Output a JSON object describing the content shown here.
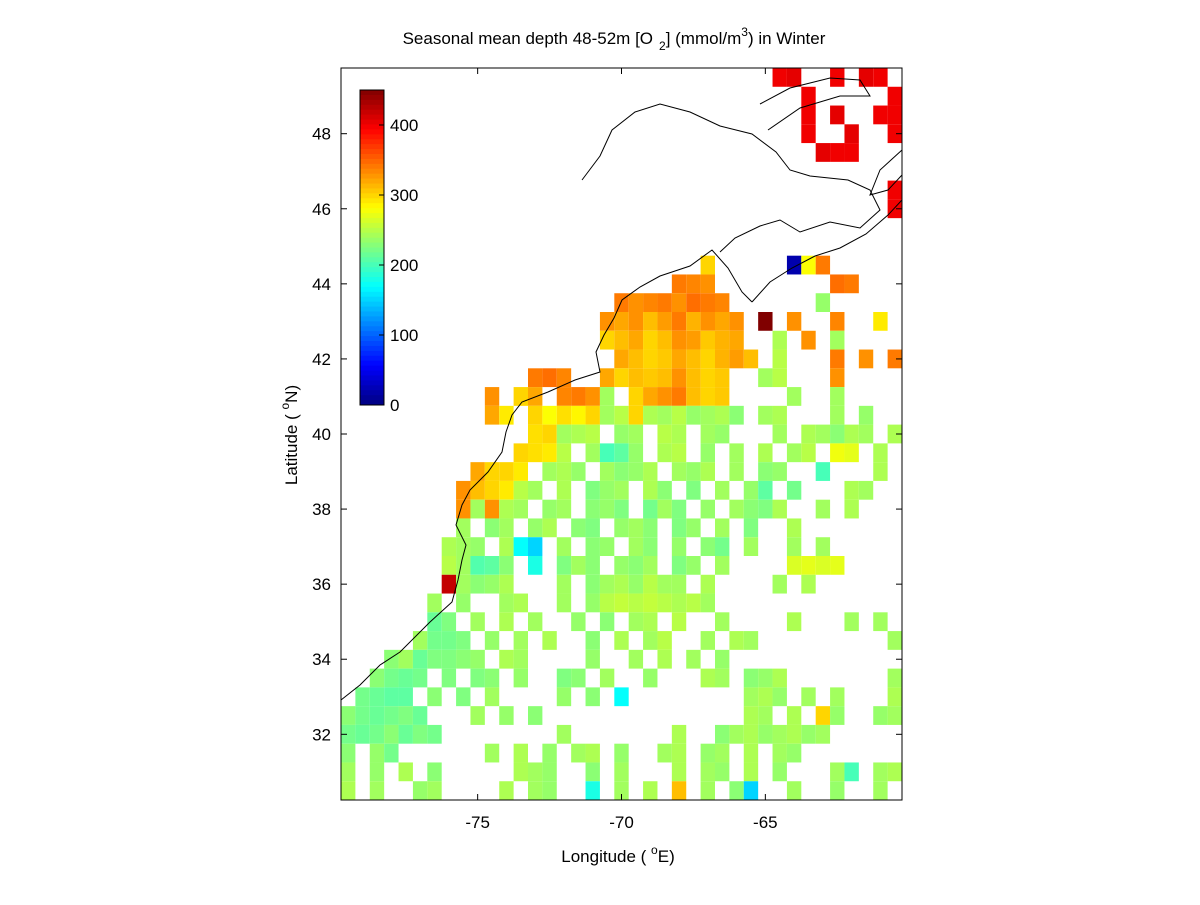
{
  "chart_data": {
    "type": "heatmap",
    "title_parts": [
      "Seasonal mean depth 48-52m [O",
      "2",
      "] (mmol/m",
      "3",
      ") in  Winter"
    ],
    "x_label_parts": [
      "Longitude ( ",
      "o",
      "E)"
    ],
    "y_label_parts": [
      "Latitude ( ",
      "o",
      "N)"
    ],
    "xlim": [
      -79.75,
      -60.25
    ],
    "ylim": [
      30.25,
      49.75
    ],
    "xticks": [
      -75,
      -70,
      -65
    ],
    "yticks": [
      32,
      34,
      36,
      38,
      40,
      42,
      44,
      46,
      48
    ],
    "clim": [
      0,
      450
    ],
    "cticks": [
      0,
      100,
      200,
      300,
      400
    ],
    "colormap": "jet",
    "cell_size": 0.5,
    "rows": [
      {
        "lat": 49.5,
        "lon": [
          -64.5,
          -64.0,
          -62.5,
          -61.5,
          -61.0
        ],
        "values": [
          400,
          405,
          400,
          405,
          400
        ]
      },
      {
        "lat": 49.0,
        "lon": [
          -63.5,
          -60.5
        ],
        "values": [
          400,
          400
        ]
      },
      {
        "lat": 48.5,
        "lon": [
          -63.5,
          -62.5,
          -61.0,
          -60.5
        ],
        "values": [
          400,
          405,
          400,
          400
        ]
      },
      {
        "lat": 48.0,
        "lon": [
          -63.5,
          -62.0,
          -60.5
        ],
        "values": [
          400,
          405,
          400
        ]
      },
      {
        "lat": 47.5,
        "lon": [
          -63.0,
          -62.5,
          -62.0
        ],
        "values": [
          405,
          400,
          400
        ]
      },
      {
        "lat": 46.5,
        "lon": [
          -60.5
        ],
        "values": [
          400
        ]
      },
      {
        "lat": 46.0,
        "lon": [
          -60.5
        ],
        "values": [
          400
        ]
      },
      {
        "lat": 44.5,
        "lon": [
          -67.0,
          -64.0,
          -63.5,
          -63.0
        ],
        "values": [
          300,
          20,
          280,
          340
        ]
      },
      {
        "lat": 44.0,
        "lon": [
          -68.0,
          -67.5,
          -67.0,
          -62.5,
          -62.0
        ],
        "values": [
          340,
          335,
          330,
          345,
          340
        ]
      },
      {
        "lat": 43.5,
        "lon": [
          -70.0,
          -69.5,
          -69.0,
          -68.5,
          -68.0,
          -67.5,
          -67.0,
          -66.5,
          -63.0
        ],
        "values": [
          340,
          330,
          335,
          340,
          330,
          345,
          340,
          335,
          235
        ]
      },
      {
        "lat": 43.0,
        "lon": [
          -70.5,
          -70.0,
          -69.5,
          -69.0,
          -68.5,
          -68.0,
          -67.5,
          -67.0,
          -66.5,
          -66.0,
          -65.0,
          -64.0,
          -62.5,
          -61.0
        ],
        "values": [
          330,
          320,
          330,
          310,
          325,
          340,
          315,
          330,
          320,
          330,
          450,
          330,
          335,
          290
        ]
      },
      {
        "lat": 42.5,
        "lon": [
          -70.5,
          -70.0,
          -69.5,
          -69.0,
          -68.5,
          -68.0,
          -67.5,
          -67.0,
          -66.5,
          -66.0,
          -64.5,
          -63.5,
          -62.5
        ],
        "values": [
          300,
          310,
          320,
          300,
          310,
          330,
          325,
          305,
          315,
          320,
          245,
          330,
          240
        ]
      },
      {
        "lat": 42.0,
        "lon": [
          -70.0,
          -69.5,
          -69.0,
          -68.5,
          -68.0,
          -67.5,
          -67.0,
          -66.5,
          -66.0,
          -65.5,
          -64.5,
          -62.5,
          -61.5,
          -60.5
        ],
        "values": [
          320,
          310,
          300,
          305,
          320,
          310,
          300,
          315,
          325,
          310,
          250,
          340,
          330,
          340
        ]
      },
      {
        "lat": 41.5,
        "lon": [
          -73.0,
          -72.5,
          -72.0,
          -70.5,
          -70.0,
          -69.5,
          -69.0,
          -68.5,
          -68.0,
          -67.5,
          -67.0,
          -66.5,
          -65.0,
          -64.5,
          -62.5
        ],
        "values": [
          340,
          345,
          335,
          320,
          300,
          310,
          305,
          310,
          330,
          310,
          300,
          305,
          240,
          250,
          330
        ]
      },
      {
        "lat": 41.0,
        "lon": [
          -74.5,
          -73.5,
          -73.0,
          -72.0,
          -71.5,
          -71.0,
          -70.5,
          -69.5,
          -69.0,
          -68.5,
          -68.0,
          -67.5,
          -67.0,
          -66.5,
          -64.0,
          -62.5
        ],
        "values": [
          330,
          300,
          320,
          335,
          340,
          330,
          240,
          300,
          320,
          330,
          340,
          310,
          300,
          305,
          240,
          240
        ]
      },
      {
        "lat": 40.5,
        "lon": [
          -74.5,
          -74.0,
          -73.0,
          -72.5,
          -72.0,
          -71.5,
          -71.0,
          -70.5,
          -70.0,
          -69.5,
          -69.0,
          -68.5,
          -68.0,
          -67.5,
          -67.0,
          -66.5,
          -66.0,
          -65.0,
          -64.5,
          -62.5,
          -61.5
        ],
        "values": [
          320,
          290,
          300,
          280,
          295,
          285,
          300,
          240,
          250,
          300,
          245,
          240,
          250,
          235,
          240,
          245,
          230,
          240,
          245,
          240,
          235
        ]
      },
      {
        "lat": 40.0,
        "lon": [
          -73.0,
          -72.5,
          -72.0,
          -71.5,
          -71.0,
          -70.0,
          -69.5,
          -68.5,
          -68.0,
          -67.0,
          -66.5,
          -64.5,
          -63.5,
          -63.0,
          -62.5,
          -62.0,
          -61.5,
          -60.5
        ],
        "values": [
          295,
          300,
          240,
          245,
          250,
          235,
          240,
          250,
          245,
          240,
          235,
          240,
          245,
          240,
          230,
          245,
          240,
          245
        ]
      },
      {
        "lat": 39.5,
        "lon": [
          -73.5,
          -73.0,
          -72.5,
          -72.0,
          -71.0,
          -70.5,
          -70.0,
          -69.5,
          -68.5,
          -68.0,
          -67.0,
          -66.0,
          -65.0,
          -64.0,
          -63.5,
          -62.5,
          -62.0,
          -61.0
        ],
        "values": [
          300,
          295,
          290,
          250,
          240,
          200,
          210,
          235,
          245,
          250,
          235,
          240,
          245,
          240,
          250,
          275,
          270,
          245
        ]
      },
      {
        "lat": 39.0,
        "lon": [
          -75.0,
          -74.5,
          -74.0,
          -73.5,
          -72.5,
          -72.0,
          -71.5,
          -70.5,
          -70.0,
          -69.5,
          -69.0,
          -68.0,
          -67.5,
          -67.0,
          -66.0,
          -65.0,
          -64.5,
          -63.0,
          -61.0
        ],
        "values": [
          320,
          300,
          300,
          290,
          240,
          245,
          235,
          240,
          230,
          235,
          245,
          240,
          235,
          245,
          240,
          230,
          235,
          200,
          245
        ]
      },
      {
        "lat": 38.5,
        "lon": [
          -75.5,
          -75.0,
          -74.5,
          -74.0,
          -73.5,
          -73.0,
          -72.0,
          -71.0,
          -70.5,
          -70.0,
          -69.0,
          -68.5,
          -67.5,
          -66.5,
          -65.5,
          -65.0,
          -64.0,
          -62.0,
          -61.5
        ],
        "values": [
          330,
          310,
          300,
          290,
          250,
          240,
          245,
          225,
          235,
          240,
          245,
          230,
          225,
          240,
          235,
          210,
          220,
          245,
          240
        ]
      },
      {
        "lat": 38.0,
        "lon": [
          -75.5,
          -75.0,
          -74.5,
          -74.0,
          -73.5,
          -72.5,
          -72.0,
          -71.0,
          -70.5,
          -70.0,
          -69.0,
          -68.5,
          -68.0,
          -67.0,
          -66.0,
          -65.5,
          -65.0,
          -64.5,
          -63.0,
          -62.0
        ],
        "values": [
          330,
          240,
          330,
          245,
          240,
          235,
          240,
          230,
          235,
          225,
          220,
          240,
          225,
          235,
          240,
          230,
          225,
          245,
          240,
          245
        ]
      },
      {
        "lat": 37.5,
        "lon": [
          -75.5,
          -74.5,
          -74.0,
          -73.0,
          -72.5,
          -71.5,
          -71.0,
          -70.0,
          -69.5,
          -69.0,
          -68.0,
          -67.5,
          -66.5,
          -65.5,
          -64.0
        ],
        "values": [
          240,
          230,
          240,
          235,
          245,
          230,
          225,
          235,
          240,
          230,
          225,
          235,
          240,
          225,
          245
        ]
      },
      {
        "lat": 37.0,
        "lon": [
          -76.0,
          -75.5,
          -75.0,
          -74.0,
          -73.5,
          -73.0,
          -72.0,
          -71.0,
          -70.5,
          -69.5,
          -69.0,
          -68.0,
          -67.0,
          -66.5,
          -65.5,
          -64.0,
          -63.0
        ],
        "values": [
          245,
          240,
          235,
          245,
          170,
          150,
          240,
          230,
          235,
          240,
          230,
          235,
          230,
          220,
          240,
          240,
          240
        ]
      },
      {
        "lat": 36.5,
        "lon": [
          -76.0,
          -75.5,
          -75.0,
          -74.5,
          -74.0,
          -73.0,
          -72.0,
          -71.5,
          -71.0,
          -70.0,
          -69.5,
          -69.0,
          -68.0,
          -67.5,
          -66.5,
          -64.0,
          -63.5,
          -63.0,
          -62.5
        ],
        "values": [
          250,
          240,
          205,
          210,
          230,
          180,
          225,
          240,
          230,
          235,
          230,
          240,
          225,
          235,
          240,
          265,
          270,
          265,
          270
        ]
      },
      {
        "lat": 36.0,
        "lon": [
          -76.0,
          -75.5,
          -75.0,
          -74.5,
          -74.0,
          -72.0,
          -71.0,
          -70.5,
          -70.0,
          -69.5,
          -69.0,
          -68.5,
          -68.0,
          -67.0,
          -64.5,
          -63.5
        ],
        "values": [
          420,
          240,
          230,
          235,
          245,
          240,
          230,
          240,
          245,
          235,
          250,
          240,
          240,
          245,
          240,
          245
        ]
      },
      {
        "lat": 35.5,
        "lon": [
          -76.5,
          -75.5,
          -74.0,
          -73.5,
          -72.0,
          -71.0,
          -70.5,
          -70.0,
          -69.5,
          -69.0,
          -68.5,
          -68.0,
          -67.5,
          -67.0
        ],
        "values": [
          240,
          235,
          240,
          245,
          240,
          235,
          250,
          255,
          250,
          255,
          250,
          245,
          250,
          240
        ]
      },
      {
        "lat": 35.0,
        "lon": [
          -76.5,
          -76.0,
          -75.0,
          -74.0,
          -73.0,
          -71.5,
          -70.5,
          -69.5,
          -69.0,
          -68.0,
          -66.5,
          -64.0,
          -62.0,
          -61.0
        ],
        "values": [
          215,
          225,
          240,
          245,
          240,
          235,
          230,
          240,
          245,
          250,
          240,
          245,
          240,
          240
        ]
      },
      {
        "lat": 34.5,
        "lon": [
          -77.0,
          -76.5,
          -76.0,
          -75.5,
          -74.5,
          -73.5,
          -72.5,
          -71.0,
          -70.0,
          -69.0,
          -68.5,
          -67.0,
          -66.0,
          -65.5,
          -60.5
        ],
        "values": [
          240,
          220,
          220,
          225,
          235,
          240,
          245,
          230,
          245,
          240,
          250,
          240,
          245,
          240,
          240
        ]
      },
      {
        "lat": 34.0,
        "lon": [
          -78.0,
          -77.5,
          -77.0,
          -76.5,
          -76.0,
          -75.5,
          -75.0,
          -74.0,
          -73.5,
          -71.0,
          -69.5,
          -68.5,
          -67.5,
          -66.5
        ],
        "values": [
          230,
          240,
          215,
          225,
          225,
          230,
          235,
          245,
          240,
          235,
          240,
          245,
          240,
          235
        ]
      },
      {
        "lat": 33.5,
        "lon": [
          -78.5,
          -78.0,
          -77.5,
          -77.0,
          -76.0,
          -75.0,
          -74.5,
          -73.5,
          -72.0,
          -71.5,
          -70.5,
          -69.0,
          -67.0,
          -66.5,
          -65.5,
          -65.0,
          -64.5,
          -60.5
        ],
        "values": [
          230,
          220,
          215,
          220,
          225,
          225,
          230,
          235,
          225,
          230,
          240,
          235,
          245,
          240,
          230,
          235,
          245,
          240
        ]
      },
      {
        "lat": 33.0,
        "lon": [
          -79.0,
          -78.5,
          -78.0,
          -77.5,
          -76.5,
          -75.5,
          -74.5,
          -72.0,
          -71.0,
          -70.0,
          -65.5,
          -65.0,
          -64.5,
          -63.5,
          -62.5,
          -60.5
        ],
        "values": [
          220,
          215,
          210,
          210,
          230,
          225,
          240,
          235,
          230,
          170,
          240,
          245,
          235,
          240,
          240,
          245
        ]
      },
      {
        "lat": 32.5,
        "lon": [
          -79.5,
          -79.0,
          -78.5,
          -78.0,
          -77.5,
          -77.0,
          -75.0,
          -74.0,
          -73.0,
          -65.5,
          -65.0,
          -64.0,
          -63.0,
          -62.5,
          -61.0,
          -60.5
        ],
        "values": [
          230,
          220,
          215,
          220,
          225,
          215,
          240,
          235,
          230,
          245,
          240,
          245,
          300,
          235,
          235,
          240
        ]
      },
      {
        "lat": 32.0,
        "lon": [
          -79.5,
          -79.0,
          -78.5,
          -78.0,
          -77.5,
          -77.0,
          -76.5,
          -72.0,
          -68.0,
          -66.5,
          -66.0,
          -65.5,
          -65.0,
          -64.5,
          -64.0,
          -63.5,
          -63.0
        ],
        "values": [
          220,
          215,
          220,
          230,
          215,
          225,
          220,
          240,
          245,
          230,
          240,
          245,
          235,
          240,
          245,
          235,
          240
        ]
      },
      {
        "lat": 31.5,
        "lon": [
          -79.5,
          -78.5,
          -78.0,
          -74.5,
          -73.5,
          -72.5,
          -71.5,
          -71.0,
          -70.0,
          -68.5,
          -68.0,
          -67.0,
          -66.5,
          -65.5,
          -64.5,
          -64.0
        ],
        "values": [
          230,
          235,
          220,
          240,
          245,
          235,
          240,
          245,
          235,
          240,
          245,
          235,
          240,
          245,
          240,
          235
        ]
      },
      {
        "lat": 31.0,
        "lon": [
          -79.5,
          -78.5,
          -77.5,
          -76.5,
          -73.5,
          -73.0,
          -72.5,
          -71.0,
          -70.0,
          -68.0,
          -67.0,
          -66.5,
          -65.5,
          -64.5,
          -62.5,
          -62.0,
          -61.0,
          -60.5
        ],
        "values": [
          240,
          235,
          245,
          230,
          245,
          240,
          235,
          230,
          240,
          245,
          240,
          235,
          245,
          235,
          240,
          200,
          240,
          245
        ]
      },
      {
        "lat": 30.5,
        "lon": [
          -79.5,
          -78.5,
          -77.0,
          -76.5,
          -74.0,
          -73.0,
          -72.5,
          -71.0,
          -70.0,
          -69.0,
          -68.0,
          -67.0,
          -66.0,
          -65.5,
          -64.0,
          -62.5,
          -61.0
        ],
        "values": [
          245,
          240,
          235,
          240,
          245,
          240,
          235,
          180,
          240,
          245,
          310,
          240,
          230,
          150,
          240,
          235,
          240
        ]
      }
    ]
  }
}
